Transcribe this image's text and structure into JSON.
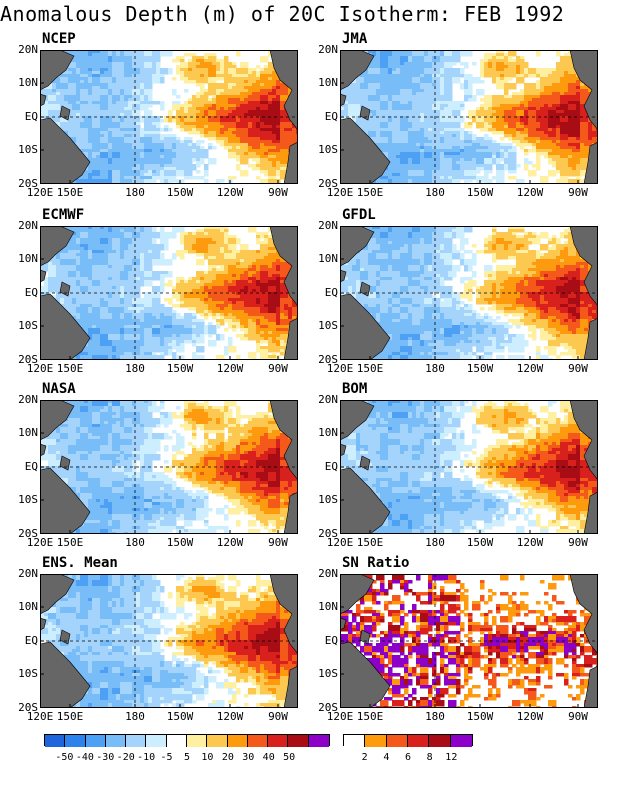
{
  "title": "Anomalous Depth (m) of 20C Isotherm: FEB 1992",
  "lat_labels": [
    "20N",
    "10N",
    "EQ",
    "10S",
    "20S"
  ],
  "lon_labels": [
    "120E",
    "150E",
    "180",
    "150W",
    "120W",
    "90W"
  ],
  "panels": [
    {
      "label": "NCEP",
      "kind": "anomaly"
    },
    {
      "label": "JMA",
      "kind": "anomaly"
    },
    {
      "label": "ECMWF",
      "kind": "anomaly"
    },
    {
      "label": "GFDL",
      "kind": "anomaly"
    },
    {
      "label": "NASA",
      "kind": "anomaly"
    },
    {
      "label": "BOM",
      "kind": "anomaly"
    },
    {
      "label": "ENS. Mean",
      "kind": "anomaly"
    },
    {
      "label": "SN Ratio",
      "kind": "snratio"
    }
  ],
  "anomaly_colorbar": {
    "colors": [
      "#1e64dc",
      "#2d82ec",
      "#4da0f4",
      "#78bcf8",
      "#a4d4fc",
      "#cceefe",
      "#ffffff",
      "#fef0a0",
      "#fdc850",
      "#fd9a0e",
      "#f4581a",
      "#d8201c",
      "#a80c14",
      "#8c00c8"
    ],
    "labels": [
      "-50",
      "-40",
      "-30",
      "-20",
      "-10",
      "-5",
      "5",
      "10",
      "20",
      "30",
      "40",
      "50"
    ]
  },
  "snratio_colorbar": {
    "colors": [
      "#ffffff",
      "#fd9a0e",
      "#f4581a",
      "#d8201c",
      "#a80c14",
      "#8c00c8"
    ],
    "labels": [
      "2",
      "4",
      "6",
      "8",
      "12"
    ]
  },
  "colors": {
    "land": "#666666",
    "grid_line": "#000000"
  }
}
